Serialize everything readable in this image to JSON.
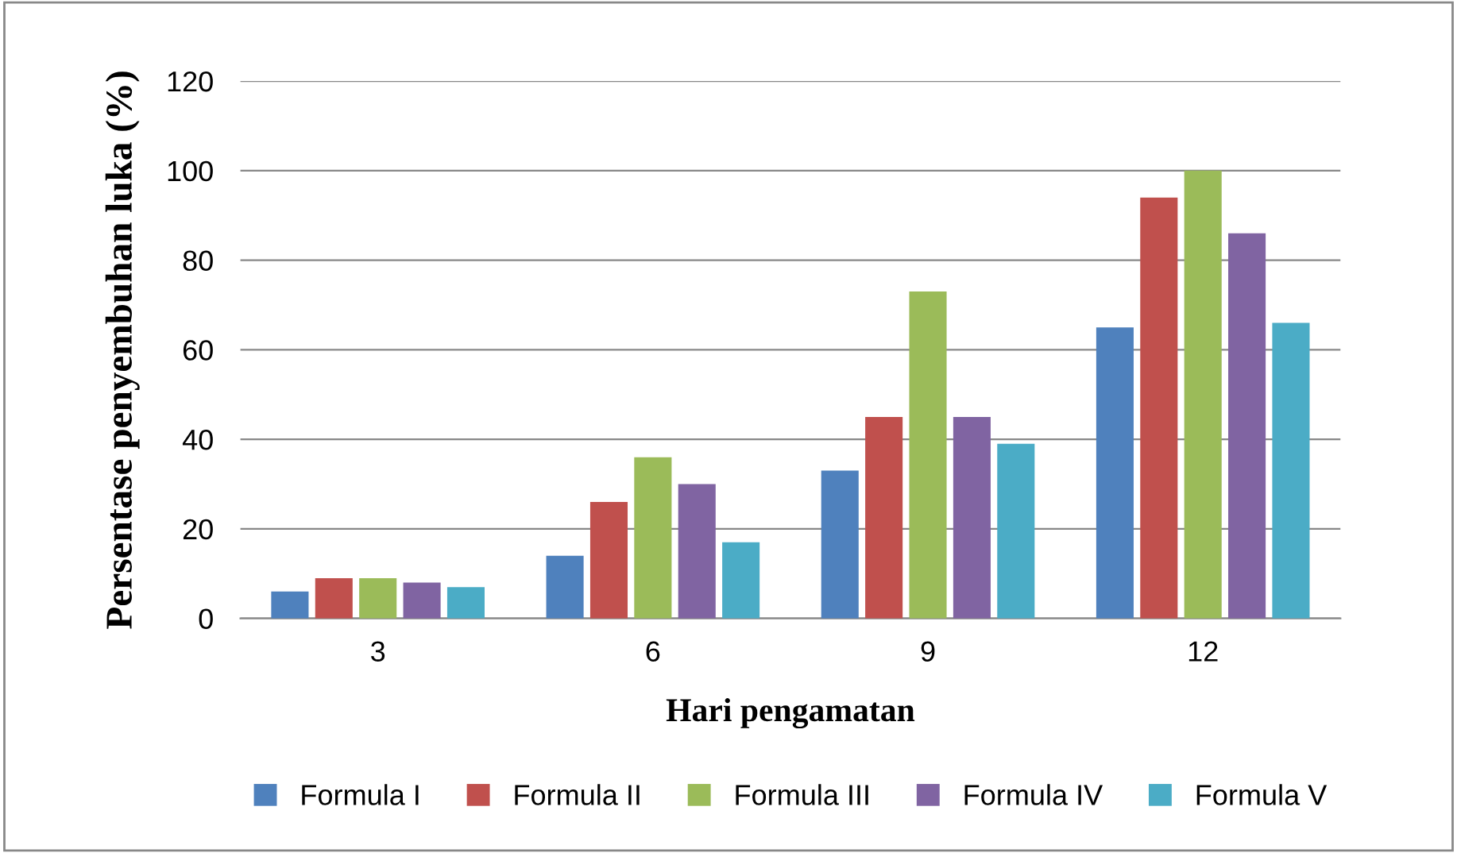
{
  "chart_data": {
    "type": "bar",
    "xlabel": "Hari pengamatan",
    "ylabel": "Persentase penyembuhan luka (%)",
    "categories": [
      "3",
      "6",
      "9",
      "12"
    ],
    "series": [
      {
        "name": "Formula I",
        "color": "#4f81bd",
        "values": [
          6,
          14,
          33,
          65
        ]
      },
      {
        "name": "Formula II",
        "color": "#c0504d",
        "values": [
          9,
          26,
          45,
          94
        ]
      },
      {
        "name": "Formula III",
        "color": "#9bbb59",
        "values": [
          9,
          36,
          73,
          100
        ]
      },
      {
        "name": "Formula IV",
        "color": "#8064a2",
        "values": [
          8,
          30,
          45,
          86
        ]
      },
      {
        "name": "Formula V",
        "color": "#4bacc6",
        "values": [
          7,
          17,
          39,
          66
        ]
      }
    ],
    "ylim": [
      0,
      120
    ],
    "yticks": [
      0,
      20,
      40,
      60,
      80,
      100,
      120
    ],
    "grid": "y",
    "legend": "bottom"
  }
}
